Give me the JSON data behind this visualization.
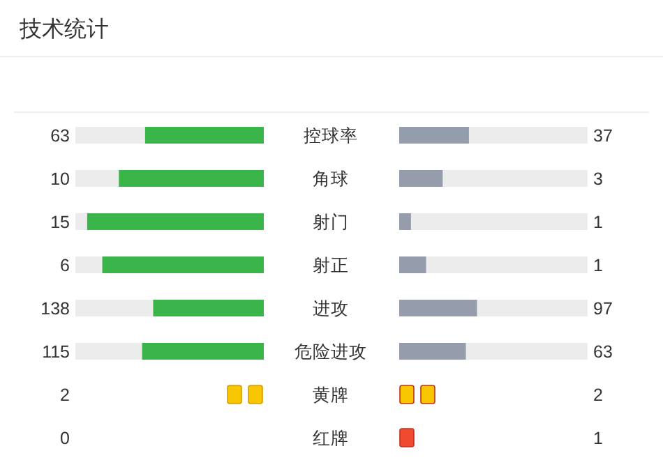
{
  "chart_data": [
    {
      "type": "other",
      "title": "技术统计",
      "categories": [
        "控球率",
        "角球",
        "射门",
        "射正",
        "进攻",
        "危险进攻"
      ],
      "data_labels": true,
      "series": [
        {
          "color": "#3ab54a",
          "values": [
            63,
            10,
            15,
            6,
            138,
            115
          ]
        },
        {
          "color": "#959cab",
          "values": [
            37,
            3,
            1,
            1,
            97,
            63
          ]
        }
      ]
    },
    {
      "type": "other",
      "categories": [
        "黄牌",
        "红牌"
      ],
      "data_labels": true,
      "series": [
        {
          "colors": [
            "#f7c600",
            "#f04a30"
          ],
          "values": [
            2,
            0
          ]
        },
        {
          "colors": [
            "#f7c600",
            "#f04a30"
          ],
          "values": [
            2,
            1
          ]
        }
      ]
    }
  ]
}
